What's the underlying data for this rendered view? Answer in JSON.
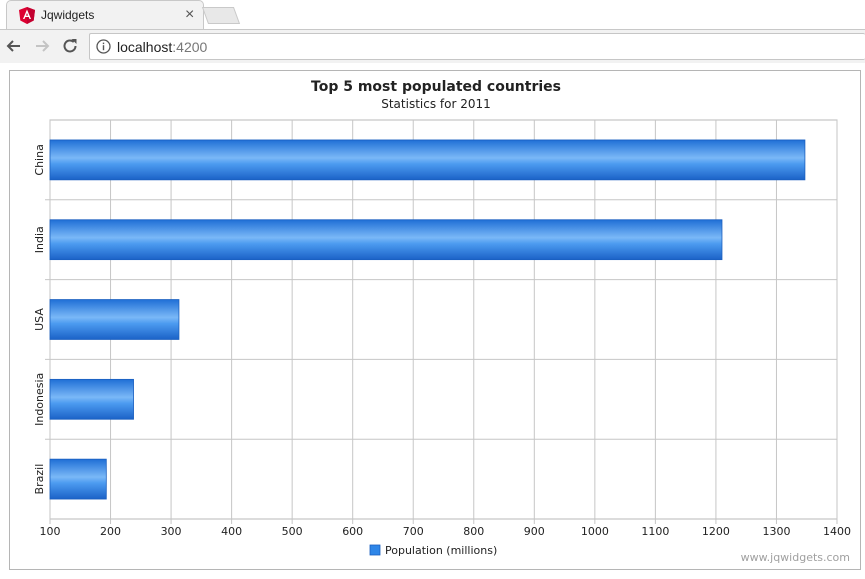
{
  "browser": {
    "tab_title": "Jqwidgets",
    "url_host": "localhost",
    "url_port": ":4200"
  },
  "chart_data": {
    "type": "bar",
    "orientation": "horizontal",
    "title": "Top 5 most populated countries",
    "subtitle": "Statistics for 2011",
    "categories": [
      "China",
      "India",
      "USA",
      "Indonesia",
      "Brazil"
    ],
    "series": [
      {
        "name": "Population (millions)",
        "values": [
          1347,
          1210,
          313,
          238,
          193
        ],
        "color": "#2e86e8"
      }
    ],
    "xlim": [
      100,
      1400
    ],
    "x_ticks": [
      100,
      200,
      300,
      400,
      500,
      600,
      700,
      800,
      900,
      1000,
      1100,
      1200,
      1300,
      1400
    ],
    "grid": true,
    "legend_position": "bottom",
    "watermark": "www.jqwidgets.com"
  }
}
